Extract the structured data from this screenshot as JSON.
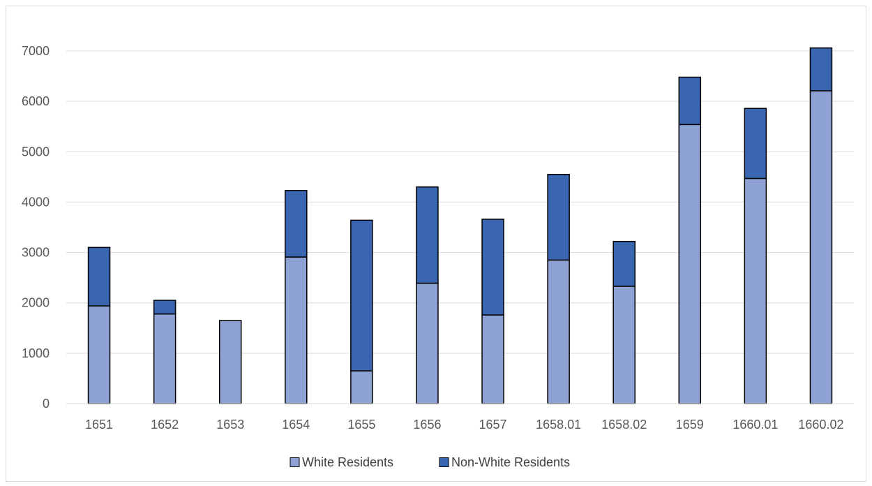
{
  "chart_data": {
    "type": "bar",
    "stacked": true,
    "title": "",
    "xlabel": "",
    "ylabel": "",
    "ylim": [
      0,
      7000
    ],
    "yticks": [
      0,
      1000,
      2000,
      3000,
      4000,
      5000,
      6000,
      7000
    ],
    "grid": true,
    "legend_position": "bottom",
    "categories": [
      "1651",
      "1652",
      "1653",
      "1654",
      "1655",
      "1656",
      "1657",
      "1658.01",
      "1658.02",
      "1659",
      "1660.01",
      "1660.02"
    ],
    "series": [
      {
        "name": "White Residents",
        "color": "#8FA2D4",
        "values": [
          1940,
          1780,
          1650,
          2910,
          650,
          2390,
          1760,
          2850,
          2330,
          5540,
          4470,
          6210
        ]
      },
      {
        "name": "Non-White Residents",
        "color": "#3A65B0",
        "values": [
          1160,
          270,
          0,
          1320,
          2990,
          1910,
          1900,
          1700,
          890,
          940,
          1390,
          850
        ]
      }
    ]
  }
}
